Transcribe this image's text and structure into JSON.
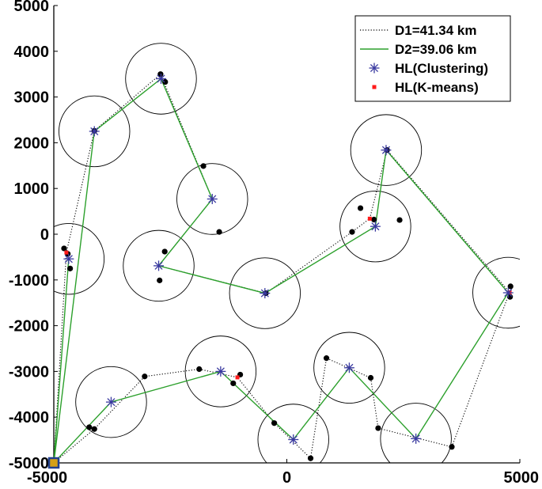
{
  "chart_data": {
    "type": "scatter",
    "xlim": [
      -5000,
      5000
    ],
    "ylim": [
      -5000,
      5000
    ],
    "x_ticks": [
      -5000,
      0,
      5000
    ],
    "x_tick_labels": [
      "-5000",
      "0",
      "5000"
    ],
    "y_ticks": [
      5000,
      4000,
      3000,
      2000,
      1000,
      0,
      -1000,
      -2000,
      -3000,
      -4000,
      -5000
    ],
    "y_tick_labels": [
      "5000",
      "4000",
      "3000",
      "2000",
      "1000",
      "0",
      "-1000",
      "-2000",
      "-3000",
      "-4000",
      "-5000"
    ],
    "grid": false,
    "legend_position": "top-right",
    "coverage_radius": 760,
    "colors": {
      "d1": "#000000",
      "d2": "#2ca02c",
      "hl_clustering": "#3a3aa0",
      "hl_kmeans": "#ff1a1a",
      "nodes": "#000000",
      "circles": "#000000",
      "base": "#1f3f8f",
      "base_fill": "#d4a017"
    },
    "legend": [
      {
        "label": "D1=41.34 km",
        "style": "dotted-line"
      },
      {
        "label": "D2=39.06 km",
        "style": "solid-line"
      },
      {
        "label": "HL(Clustering)",
        "style": "asterisk"
      },
      {
        "label": "HL(K-means)",
        "style": "red-square"
      }
    ],
    "base_station": {
      "x": -5000,
      "y": -5000
    },
    "hl_clustering": [
      {
        "x": -2700,
        "y": 3400
      },
      {
        "x": -4130,
        "y": 2250
      },
      {
        "x": -1600,
        "y": 770
      },
      {
        "x": -4680,
        "y": -540
      },
      {
        "x": -2750,
        "y": -690
      },
      {
        "x": -470,
        "y": -1290
      },
      {
        "x": 1900,
        "y": 170
      },
      {
        "x": 2130,
        "y": 1840
      },
      {
        "x": 4750,
        "y": -1280
      },
      {
        "x": -3770,
        "y": -3670
      },
      {
        "x": -1420,
        "y": -3000
      },
      {
        "x": 140,
        "y": -4490
      },
      {
        "x": 1340,
        "y": -2920
      },
      {
        "x": 2770,
        "y": -4470
      }
    ],
    "hl_kmeans": [
      {
        "x": -4730,
        "y": -400
      },
      {
        "x": 1780,
        "y": 340
      },
      {
        "x": 4780,
        "y": -1270
      },
      {
        "x": -1060,
        "y": -3130
      }
    ],
    "nodes": [
      {
        "x": -2710,
        "y": 3500
      },
      {
        "x": -2610,
        "y": 3330
      },
      {
        "x": -4130,
        "y": 2260
      },
      {
        "x": -1790,
        "y": 1490
      },
      {
        "x": -1450,
        "y": 50
      },
      {
        "x": -4780,
        "y": -310
      },
      {
        "x": -4700,
        "y": -430
      },
      {
        "x": -4650,
        "y": -750
      },
      {
        "x": -2620,
        "y": -380
      },
      {
        "x": -2730,
        "y": -1010
      },
      {
        "x": -450,
        "y": -1290
      },
      {
        "x": 1580,
        "y": 570
      },
      {
        "x": 1870,
        "y": 320
      },
      {
        "x": 2420,
        "y": 310
      },
      {
        "x": 1400,
        "y": 50
      },
      {
        "x": 2150,
        "y": 1840
      },
      {
        "x": 4800,
        "y": -1140
      },
      {
        "x": 4790,
        "y": -1370
      },
      {
        "x": -3050,
        "y": -3110
      },
      {
        "x": -4240,
        "y": -4220
      },
      {
        "x": -4130,
        "y": -4260
      },
      {
        "x": -1880,
        "y": -2950
      },
      {
        "x": -1000,
        "y": -3070
      },
      {
        "x": -1150,
        "y": -3260
      },
      {
        "x": -270,
        "y": -4130
      },
      {
        "x": 510,
        "y": -4900
      },
      {
        "x": 850,
        "y": -2710
      },
      {
        "x": 1800,
        "y": -3140
      },
      {
        "x": 1960,
        "y": -4240
      },
      {
        "x": 3540,
        "y": -4650
      }
    ],
    "route_d2": [
      {
        "x": -5000,
        "y": -5000
      },
      {
        "x": -4130,
        "y": 2250
      },
      {
        "x": -2700,
        "y": 3400
      },
      {
        "x": -1600,
        "y": 770
      },
      {
        "x": -2750,
        "y": -690
      },
      {
        "x": -470,
        "y": -1290
      },
      {
        "x": 1900,
        "y": 170
      },
      {
        "x": 2130,
        "y": 1840
      },
      {
        "x": 4750,
        "y": -1280
      },
      {
        "x": 2770,
        "y": -4470
      },
      {
        "x": 1340,
        "y": -2920
      },
      {
        "x": 140,
        "y": -4490
      },
      {
        "x": -1420,
        "y": -3000
      },
      {
        "x": -3770,
        "y": -3670
      },
      {
        "x": -5000,
        "y": -5000
      },
      {
        "x": -4680,
        "y": -540
      }
    ],
    "route_d1": [
      {
        "x": -5000,
        "y": -5000
      },
      {
        "x": -4730,
        "y": -400
      },
      {
        "x": -4130,
        "y": 2260
      },
      {
        "x": -2710,
        "y": 3500
      },
      {
        "x": -1600,
        "y": 770
      },
      {
        "x": -2750,
        "y": -690
      },
      {
        "x": -450,
        "y": -1290
      },
      {
        "x": 1400,
        "y": 50
      },
      {
        "x": 1780,
        "y": 340
      },
      {
        "x": 2150,
        "y": 1840
      },
      {
        "x": 4780,
        "y": -1270
      },
      {
        "x": 3540,
        "y": -4650
      },
      {
        "x": 1960,
        "y": -4240
      },
      {
        "x": 1800,
        "y": -3140
      },
      {
        "x": 850,
        "y": -2710
      },
      {
        "x": 510,
        "y": -4900
      },
      {
        "x": -270,
        "y": -4130
      },
      {
        "x": -1060,
        "y": -3130
      },
      {
        "x": -1880,
        "y": -2950
      },
      {
        "x": -3050,
        "y": -3110
      },
      {
        "x": -4130,
        "y": -4260
      },
      {
        "x": -5000,
        "y": -5000
      }
    ]
  }
}
